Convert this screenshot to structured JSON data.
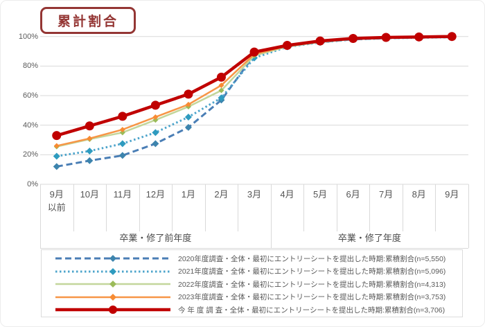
{
  "title": "累計割合",
  "colors": {
    "title": "#943634",
    "grid": "#d9d9d9",
    "axis_text": "#595959",
    "label_text": "#4a4a4a",
    "legend_border": "#dcdcdc"
  },
  "chart_data": {
    "type": "line",
    "title": "累計割合",
    "categories": [
      "9月\n以前",
      "10月",
      "11月",
      "12月",
      "1月",
      "2月",
      "3月",
      "4月",
      "5月",
      "6月",
      "7月",
      "8月",
      "9月"
    ],
    "y_ticks": [
      {
        "label": "0%",
        "value": 0
      },
      {
        "label": "20%",
        "value": 20
      },
      {
        "label": "40%",
        "value": 40
      },
      {
        "label": "60%",
        "value": 60
      },
      {
        "label": "80%",
        "value": 80
      },
      {
        "label": "100%",
        "value": 100
      }
    ],
    "ylim": [
      0,
      100
    ],
    "grid": true,
    "legend_position": "bottom",
    "x_groups": [
      {
        "label": "卒業・修了前年度",
        "span": 7
      },
      {
        "label": "卒業・修了年度",
        "span": 6
      }
    ],
    "series": [
      {
        "name": "2020年度調査・全体・最初にエントリーシートを提出した時期:累積割合(n=5,550)",
        "color": "#4a7eb5",
        "marker_color": "#3d84ad",
        "style": "dashed",
        "marker": "diamond",
        "width": 3,
        "values": [
          12,
          16,
          19.5,
          27.5,
          38.5,
          57,
          87.5,
          93.3,
          96.2,
          98.1,
          98.9,
          99.3,
          99.6
        ]
      },
      {
        "name": "2021年度調査・全体・最初にエントリーシートを提出した時期:累積割合(n=5,096)",
        "color": "#4da4cb",
        "marker_color": "#2e9bbf",
        "style": "dotted",
        "marker": "diamond",
        "width": 3,
        "values": [
          19,
          22.5,
          27.5,
          35,
          45.5,
          58.5,
          85.5,
          93,
          96,
          98,
          98.8,
          99.2,
          99.5
        ]
      },
      {
        "name": "2022年度調査・全体・最初にエントリーシートを提出した時期:累積割合(n=4,313)",
        "color": "#c3d69b",
        "marker_color": "#9bbb59",
        "style": "solid",
        "marker": "diamond",
        "width": 2.5,
        "values": [
          25.5,
          30.5,
          35,
          43.5,
          52.5,
          63.5,
          87,
          93.2,
          96.3,
          98.2,
          99,
          99.4,
          99.7
        ]
      },
      {
        "name": "2023年度調査・全体・最初にエントリーシートを提出した時期:累積割合(n=3,753)",
        "color": "#f79646",
        "marker_color": "#f78b33",
        "style": "solid",
        "marker": "diamond",
        "width": 2.5,
        "values": [
          26,
          31,
          37,
          45.5,
          54,
          67,
          88,
          93.5,
          96.6,
          98.4,
          99.2,
          99.5,
          99.8
        ]
      },
      {
        "name": "今 年 度 調 査・全体・最初にエントリーシートを提出した時期:累積割合(n=3,706)",
        "color": "#c00000",
        "marker_color": "#c00000",
        "style": "solid",
        "marker": "circle",
        "width": 4.5,
        "values": [
          33,
          39.5,
          46,
          53.5,
          61,
          72.5,
          89.5,
          94,
          97,
          98.7,
          99.4,
          99.7,
          100
        ]
      }
    ]
  }
}
